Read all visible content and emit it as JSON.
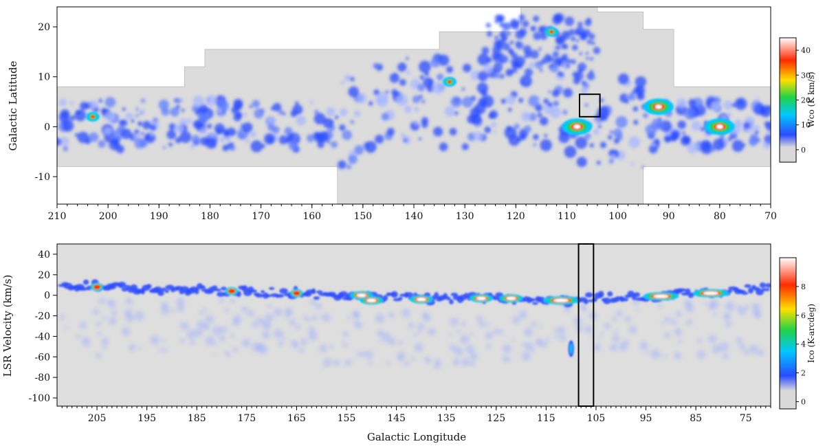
{
  "chart_data": [
    {
      "type": "heatmap",
      "panel": "top",
      "xlabel": "",
      "ylabel": "Galactic Latitude",
      "xlim": [
        210,
        70
      ],
      "ylim": [
        -15.5,
        24
      ],
      "x_ticks": [
        "210",
        "200",
        "190",
        "180",
        "170",
        "160",
        "150",
        "140",
        "130",
        "120",
        "110",
        "100",
        "90",
        "80",
        "70"
      ],
      "y_ticks": [
        "20",
        "10",
        "0",
        "-10"
      ],
      "colorbar": {
        "label": "Wco (K km/s)",
        "range": [
          -5,
          45
        ],
        "ticks": [
          "40",
          "30",
          "20",
          "10",
          "0"
        ],
        "colors": [
          "#d9d9d9",
          "#2a4bff",
          "#00c8ff",
          "#1fd24a",
          "#ffe000",
          "#ff2a00",
          "#ffffff"
        ]
      },
      "box": {
        "l": [
          107.5,
          103.5
        ],
        "b": [
          2,
          6.5
        ]
      },
      "survey_outline": [
        [
          210,
          8
        ],
        [
          185,
          8
        ],
        [
          185,
          12
        ],
        [
          181,
          12
        ],
        [
          181,
          15.5
        ],
        [
          135,
          15.5
        ],
        [
          135,
          19
        ],
        [
          119,
          19
        ],
        [
          119,
          24
        ],
        [
          104,
          24
        ],
        [
          104,
          23
        ],
        [
          95,
          23
        ],
        [
          95,
          19.5
        ],
        [
          89,
          19.5
        ],
        [
          89,
          8
        ],
        [
          70,
          8
        ],
        [
          70,
          -8
        ],
        [
          95,
          -8
        ],
        [
          95,
          -15.5
        ],
        [
          155,
          -15.5
        ],
        [
          155,
          -8
        ],
        [
          210,
          -8
        ]
      ],
      "emission_regions": [
        {
          "l": 80,
          "b": 0,
          "level": "high"
        },
        {
          "l": 92,
          "b": 4,
          "level": "high"
        },
        {
          "l": 108,
          "b": 0,
          "level": "high"
        },
        {
          "l": 113,
          "b": 19,
          "level": "medium"
        },
        {
          "l": 133,
          "b": 9,
          "level": "medium"
        },
        {
          "l": 203,
          "b": 2,
          "level": "medium"
        }
      ]
    },
    {
      "type": "heatmap",
      "panel": "bottom",
      "xlabel": "Galactic Longitude",
      "ylabel": "LSR Velocity (km/s)",
      "xlim": [
        213,
        70
      ],
      "ylim": [
        -108,
        50
      ],
      "x_ticks": [
        "205",
        "195",
        "185",
        "175",
        "165",
        "155",
        "145",
        "135",
        "125",
        "115",
        "105",
        "95",
        "85",
        "75"
      ],
      "y_ticks": [
        "40",
        "20",
        "0",
        "-20",
        "-40",
        "-60",
        "-80",
        "-100"
      ],
      "colorbar": {
        "label": "Ico (K-arcdeg)",
        "range": [
          -0.5,
          10
        ],
        "ticks": [
          "8",
          "6",
          "4",
          "2",
          "0"
        ],
        "colors": [
          "#d9d9d9",
          "#2a4bff",
          "#00c8ff",
          "#1fd24a",
          "#ffe000",
          "#ff2a00",
          "#ffffff"
        ]
      },
      "box": {
        "l": [
          108.5,
          105.5
        ],
        "v": [
          -108,
          50
        ]
      },
      "ridge": [
        {
          "l": 212,
          "v": 10
        },
        {
          "l": 200,
          "v": 7
        },
        {
          "l": 185,
          "v": 5
        },
        {
          "l": 170,
          "v": 3
        },
        {
          "l": 160,
          "v": 1
        },
        {
          "l": 150,
          "v": -1
        },
        {
          "l": 140,
          "v": -3
        },
        {
          "l": 130,
          "v": -3
        },
        {
          "l": 120,
          "v": -4
        },
        {
          "l": 110,
          "v": -5
        },
        {
          "l": 105,
          "v": -3
        },
        {
          "l": 95,
          "v": -1
        },
        {
          "l": 85,
          "v": 2
        },
        {
          "l": 78,
          "v": 4
        },
        {
          "l": 70,
          "v": 8
        }
      ]
    }
  ]
}
